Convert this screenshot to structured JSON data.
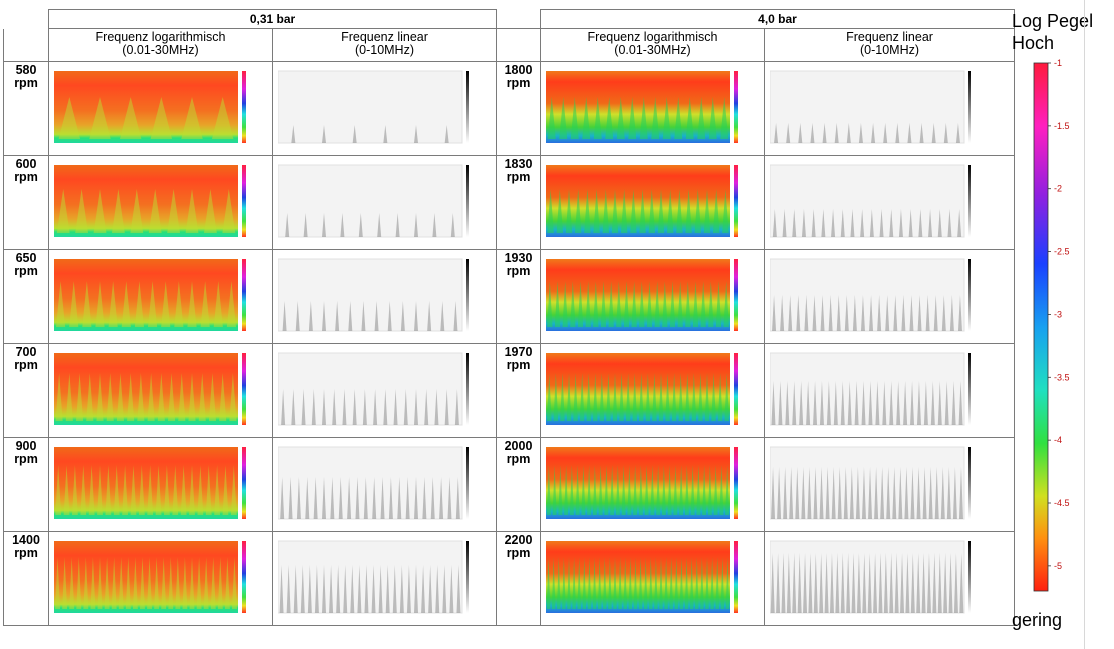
{
  "table": {
    "groups": [
      "0,31 bar",
      "4,0 bar"
    ],
    "columns": [
      [
        "Frequenz logarithmisch",
        "(0.01-30MHz)"
      ],
      [
        "Frequenz linear",
        "(0-10MHz)"
      ],
      [
        "Frequenz logarithmisch",
        "(0.01-30MHz)"
      ],
      [
        "Frequenz linear",
        "(0-10MHz)"
      ]
    ],
    "unit": "rpm",
    "rows": [
      {
        "left": "580",
        "right": "1800"
      },
      {
        "left": "600",
        "right": "1830"
      },
      {
        "left": "650",
        "right": "1930"
      },
      {
        "left": "700",
        "right": "1970"
      },
      {
        "left": "900",
        "right": "2000"
      },
      {
        "left": "1400",
        "right": "2200"
      }
    ]
  },
  "colorbar": {
    "title_line1": "Log Pegel",
    "title_line2": "Hoch",
    "low_label": "gering",
    "ticks": [
      "-1",
      "-1.5",
      "-2",
      "-2.5",
      "-3",
      "-3.5",
      "-4",
      "-4.5",
      "-5"
    ],
    "tick_values": [
      -1,
      -1.5,
      -2,
      -2.5,
      -3,
      -3.5,
      -4,
      -4.5,
      -5
    ],
    "range": [
      -1,
      -5.2
    ]
  }
}
